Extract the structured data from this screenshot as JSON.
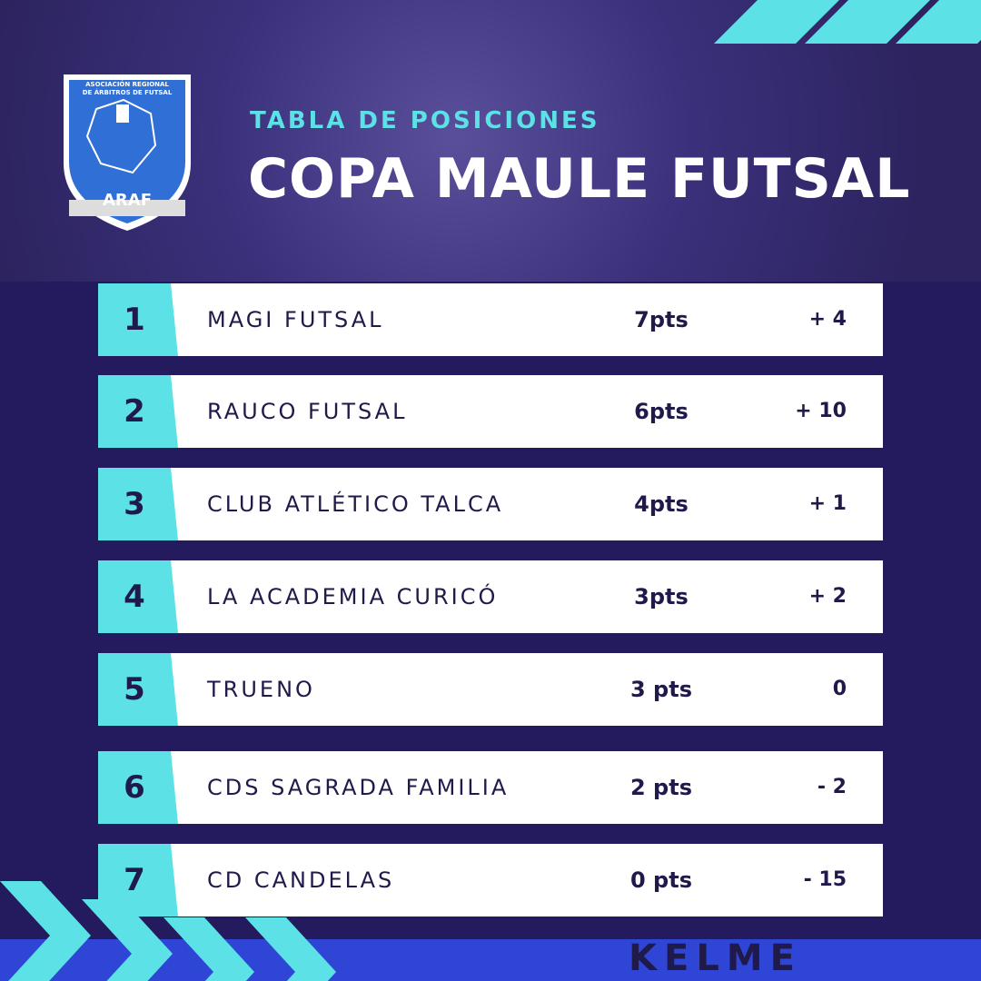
{
  "logo": {
    "line1": "ASOCIACIÓN REGIONAL",
    "line2": "DE ÁRBITROS DE FUTSAL",
    "acronym": "ARAF"
  },
  "header": {
    "subtitle": "TABLA DE POSICIONES",
    "title": "COPA MAULE FUTSAL"
  },
  "table": {
    "rows": [
      [
        "1",
        "MAGI FUTSAL",
        "7pts",
        "+ 4"
      ],
      [
        "2",
        "RAUCO FUTSAL",
        "6pts",
        "+ 10"
      ],
      [
        "3",
        "CLUB ATLÉTICO TALCA",
        "4pts",
        "+ 1"
      ],
      [
        "4",
        "LA ACADEMIA CURICÓ",
        "3pts",
        "+ 2"
      ],
      [
        "5",
        "TRUENO",
        "3 pts",
        "0"
      ],
      [
        "6",
        "CDS SAGRADA FAMILIA",
        "2 pts",
        "- 2"
      ],
      [
        "7",
        "CD CANDELAS",
        "0 pts",
        "- 15"
      ]
    ]
  },
  "footer": {
    "brand": "KELME"
  }
}
